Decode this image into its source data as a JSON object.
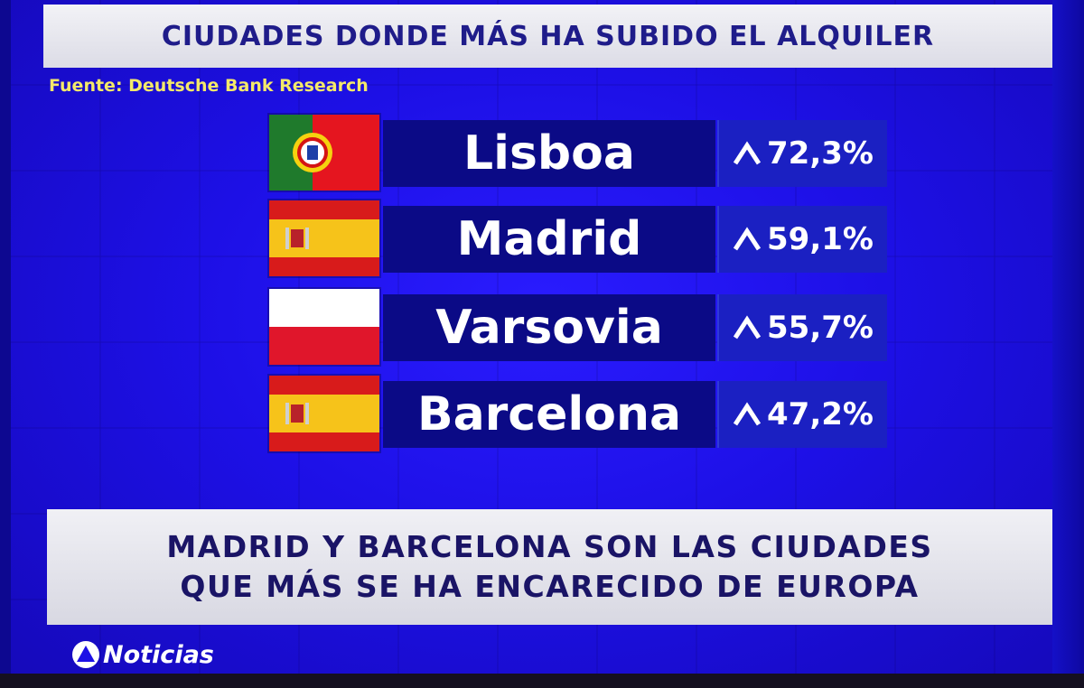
{
  "header": {
    "title": "CIUDADES DONDE MÁS HA SUBIDO EL ALQUILER"
  },
  "source": "Fuente: Deutsche Bank Research",
  "rows": [
    {
      "city": "Lisboa",
      "change": "72,3%",
      "flag": "portugal-flag"
    },
    {
      "city": "Madrid",
      "change": "59,1%",
      "flag": "spain-flag"
    },
    {
      "city": "Varsovia",
      "change": "55,7%",
      "flag": "poland-flag"
    },
    {
      "city": "Barcelona",
      "change": "47,2%",
      "flag": "spain-flag"
    }
  ],
  "banner": {
    "line1": "MADRID Y BARCELONA SON LAS CIUDADES",
    "line2": "QUE MÁS SE HA ENCARECIDO DE EUROPA"
  },
  "logo": {
    "text": "Noticias",
    "icon": "antena3-logo-icon"
  },
  "colors": {
    "background": "#1d10e6",
    "name_box": "#0b0a86",
    "pct_box": "#1b20c2",
    "source_text": "#f4e96a",
    "header_text": "#1f1c8a"
  }
}
